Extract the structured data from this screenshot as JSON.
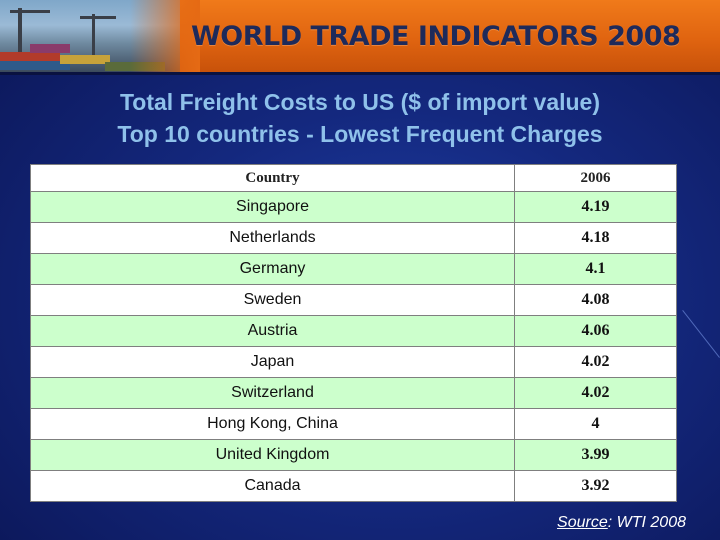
{
  "banner": {
    "title": "WORLD TRADE INDICATORS 2008"
  },
  "heading": {
    "line1": "Total Freight Costs to US ($ of import value)",
    "line2": "Top 10 countries - Lowest Frequent Charges"
  },
  "table": {
    "headers": [
      "Country",
      "2006"
    ],
    "rows": [
      {
        "country": "Singapore",
        "value": "4.19"
      },
      {
        "country": "Netherlands",
        "value": "4.18"
      },
      {
        "country": "Germany",
        "value": "4.1"
      },
      {
        "country": "Sweden",
        "value": "4.08"
      },
      {
        "country": "Austria",
        "value": "4.06"
      },
      {
        "country": "Japan",
        "value": "4.02"
      },
      {
        "country": "Switzerland",
        "value": "4.02"
      },
      {
        "country": "Hong Kong, China",
        "value": "4"
      },
      {
        "country": "United Kingdom",
        "value": "3.99"
      },
      {
        "country": "Canada",
        "value": "3.92"
      }
    ]
  },
  "source": {
    "label": "Source",
    "text": ": WTI 2008"
  },
  "colors": {
    "banner": "#e06410",
    "background": "#14287e",
    "heading": "#8fc1ea",
    "row_highlight": "#ccffcc"
  }
}
